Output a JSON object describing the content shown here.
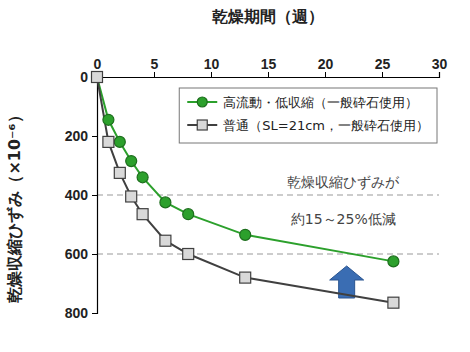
{
  "chart_data": {
    "type": "line",
    "x_label": "乾燥期間（週）",
    "y_label": "乾燥収縮ひずみ（×10⁻⁶）",
    "x": [
      0,
      1,
      2,
      3,
      4,
      6,
      8,
      13,
      26
    ],
    "series": [
      {
        "name": "高流動・低収縮（一般砕石使用）",
        "color": "#2ca02c",
        "marker": "circle",
        "values": [
          0,
          145,
          220,
          285,
          340,
          425,
          465,
          535,
          625
        ]
      },
      {
        "name": "普通（SL=21cm，一般砕石使用）",
        "color": "#404040",
        "marker": "square",
        "values": [
          0,
          220,
          325,
          405,
          465,
          555,
          600,
          680,
          765
        ]
      }
    ],
    "xlim": [
      0,
      30
    ],
    "xticks": [
      0,
      5,
      10,
      15,
      20,
      25,
      30
    ],
    "ylim": [
      0,
      800
    ],
    "yticks": [
      0,
      200,
      400,
      600,
      800
    ],
    "hlines": [
      400,
      600
    ],
    "annotations": [
      "乾燥収縮ひずみが",
      "約15～25%低減"
    ],
    "legend": "top-right"
  }
}
